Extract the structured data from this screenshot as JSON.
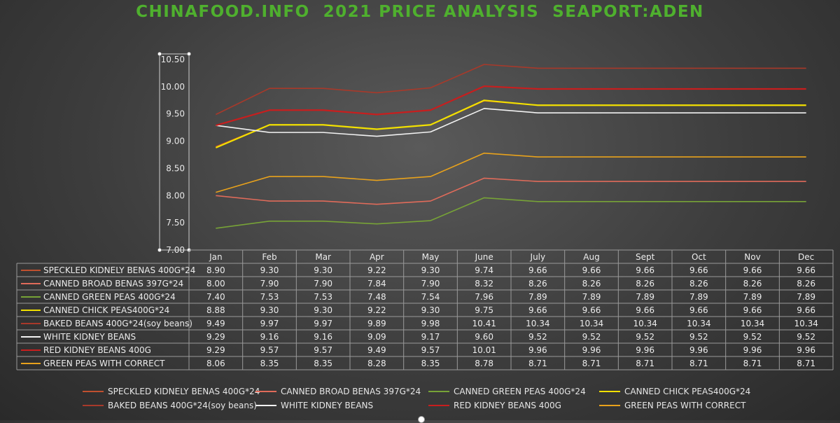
{
  "chart_data": {
    "type": "line",
    "title": "CHINAFOOD.INFO  2021 PRICE ANALYSIS  SEAPORT:ADEN",
    "categories": [
      "Jan",
      "Feb",
      "Mar",
      "Apr",
      "May",
      "June",
      "July",
      "Aug",
      "Sept",
      "Oct",
      "Nov",
      "Dec"
    ],
    "ylim": [
      7.0,
      10.5
    ],
    "yticks": [
      "7.00",
      "7.50",
      "8.00",
      "8.50",
      "9.00",
      "9.50",
      "10.00",
      "10.50"
    ],
    "grid": false,
    "data_table": true,
    "legend_position": "bottom",
    "series": [
      {
        "name": "SPECKLED KIDNELY BENAS 400G*24",
        "color": "#c0502f",
        "values": [
          8.9,
          9.3,
          9.3,
          9.22,
          9.3,
          9.74,
          9.66,
          9.66,
          9.66,
          9.66,
          9.66,
          9.66
        ],
        "labels": [
          "8.90",
          "9.30",
          "9.30",
          "9.22",
          "9.30",
          "9.74",
          "9.66",
          "9.66",
          "9.66",
          "9.66",
          "9.66",
          "9.66"
        ]
      },
      {
        "name": "CANNED BROAD BENAS 397G*24",
        "color": "#e06b5a",
        "values": [
          8.0,
          7.9,
          7.9,
          7.84,
          7.9,
          8.32,
          8.26,
          8.26,
          8.26,
          8.26,
          8.26,
          8.26
        ],
        "labels": [
          "8.00",
          "7.90",
          "7.90",
          "7.84",
          "7.90",
          "8.32",
          "8.26",
          "8.26",
          "8.26",
          "8.26",
          "8.26",
          "8.26"
        ]
      },
      {
        "name": "CANNED GREEN PEAS 400G*24",
        "color": "#77a337",
        "values": [
          7.4,
          7.53,
          7.53,
          7.48,
          7.54,
          7.96,
          7.89,
          7.89,
          7.89,
          7.89,
          7.89,
          7.89
        ],
        "labels": [
          "7.40",
          "7.53",
          "7.53",
          "7.48",
          "7.54",
          "7.96",
          "7.89",
          "7.89",
          "7.89",
          "7.89",
          "7.89",
          "7.89"
        ]
      },
      {
        "name": "CANNED CHICK PEAS400G*24",
        "color": "#f2e000",
        "values": [
          8.88,
          9.3,
          9.3,
          9.22,
          9.3,
          9.75,
          9.66,
          9.66,
          9.66,
          9.66,
          9.66,
          9.66
        ],
        "labels": [
          "8.88",
          "9.30",
          "9.30",
          "9.22",
          "9.30",
          "9.75",
          "9.66",
          "9.66",
          "9.66",
          "9.66",
          "9.66",
          "9.66"
        ]
      },
      {
        "name": "BAKED BEANS 400G*24(soy beans)",
        "color": "#a8392a",
        "values": [
          9.49,
          9.97,
          9.97,
          9.89,
          9.98,
          10.41,
          10.34,
          10.34,
          10.34,
          10.34,
          10.34,
          10.34
        ],
        "labels": [
          "9.49",
          "9.97",
          "9.97",
          "9.89",
          "9.98",
          "10.41",
          "10.34",
          "10.34",
          "10.34",
          "10.34",
          "10.34",
          "10.34"
        ]
      },
      {
        "name": "WHITE KIDNEY BEANS",
        "color": "#f2f2f2",
        "values": [
          9.29,
          9.16,
          9.16,
          9.09,
          9.17,
          9.6,
          9.52,
          9.52,
          9.52,
          9.52,
          9.52,
          9.52
        ],
        "labels": [
          "9.29",
          "9.16",
          "9.16",
          "9.09",
          "9.17",
          "9.60",
          "9.52",
          "9.52",
          "9.52",
          "9.52",
          "9.52",
          "9.52"
        ]
      },
      {
        "name": "RED KIDNEY BEANS 400G",
        "color": "#c81e1e",
        "values": [
          9.29,
          9.57,
          9.57,
          9.49,
          9.57,
          10.01,
          9.96,
          9.96,
          9.96,
          9.96,
          9.96,
          9.96
        ],
        "labels": [
          "9.29",
          "9.57",
          "9.57",
          "9.49",
          "9.57",
          "10.01",
          "9.96",
          "9.96",
          "9.96",
          "9.96",
          "9.96",
          "9.96"
        ]
      },
      {
        "name": "GREEN PEAS WITH CORRECT",
        "color": "#e8a21c",
        "values": [
          8.06,
          8.35,
          8.35,
          8.28,
          8.35,
          8.78,
          8.71,
          8.71,
          8.71,
          8.71,
          8.71,
          8.71
        ],
        "labels": [
          "8.06",
          "8.35",
          "8.35",
          "8.28",
          "8.35",
          "8.78",
          "8.71",
          "8.71",
          "8.71",
          "8.71",
          "8.71",
          "8.71"
        ]
      }
    ]
  }
}
